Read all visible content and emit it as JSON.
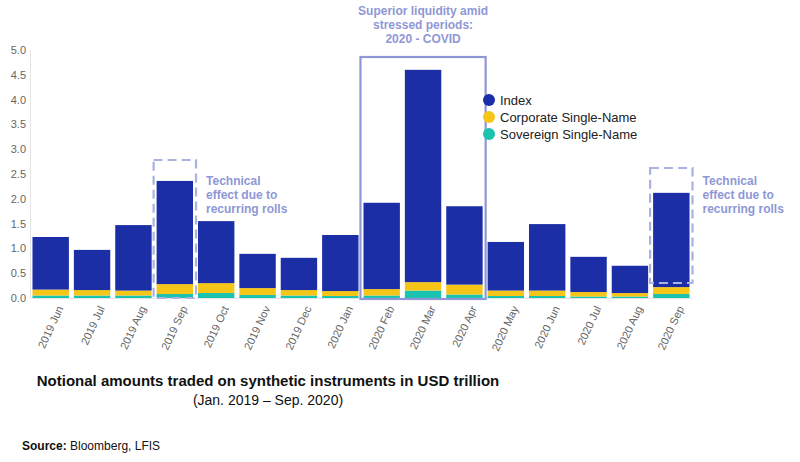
{
  "chart_data": {
    "type": "bar",
    "stacked": true,
    "title": "Notional amounts traded on synthetic instruments in USD trillion",
    "subtitle": "(Jan. 2019 – Sep. 2020)",
    "source": "Source: Bloomberg, LFIS",
    "categories": [
      "2019 Jun",
      "2019 Jul",
      "2019 Aug",
      "2019 Sep",
      "2019 Oct",
      "2019 Nov",
      "2019 Dec",
      "2020 Jan",
      "2020 Feb",
      "2020 Mar",
      "2020 Apr",
      "2020 May",
      "2020 Jun",
      "2020 Jul",
      "2020 Aug",
      "2020 Sep"
    ],
    "series": [
      {
        "name": "Index",
        "color": "#1b2ea5",
        "values": [
          1.06,
          0.81,
          1.32,
          2.08,
          1.25,
          0.69,
          0.65,
          1.13,
          1.74,
          4.28,
          1.58,
          0.98,
          1.34,
          0.71,
          0.55,
          1.9
        ]
      },
      {
        "name": "Corporate Single-Name",
        "color": "#f5c518",
        "values": [
          0.12,
          0.11,
          0.1,
          0.2,
          0.2,
          0.14,
          0.11,
          0.1,
          0.13,
          0.17,
          0.2,
          0.11,
          0.11,
          0.09,
          0.07,
          0.14
        ]
      },
      {
        "name": "Sovereign Single-Name",
        "color": "#19c3b0",
        "values": [
          0.05,
          0.05,
          0.05,
          0.08,
          0.1,
          0.06,
          0.05,
          0.04,
          0.05,
          0.15,
          0.07,
          0.04,
          0.04,
          0.03,
          0.03,
          0.08
        ]
      }
    ],
    "ylim": [
      0,
      5
    ],
    "yticks": [
      {
        "value": 0,
        "label": "0.0"
      },
      0.5,
      {
        "value": 1,
        "label": "1.0"
      },
      1.5,
      {
        "value": 2,
        "label": "2.0"
      },
      2.5,
      {
        "value": 3,
        "label": "3.0"
      },
      3.5,
      {
        "value": 4,
        "label": "4.0"
      },
      4.5,
      {
        "value": 5,
        "label": "5.0"
      }
    ],
    "grid": false,
    "legend": "upper right",
    "annotations": [
      {
        "text": [
          "Superior liquidity amid",
          "stressed periods:",
          "2020 - COVID"
        ]
      },
      {
        "text": [
          "Technical",
          "effect due to",
          "recurring rolls"
        ]
      },
      {
        "text": [
          "Technical",
          "effect due to",
          "recurring rolls"
        ]
      }
    ]
  }
}
